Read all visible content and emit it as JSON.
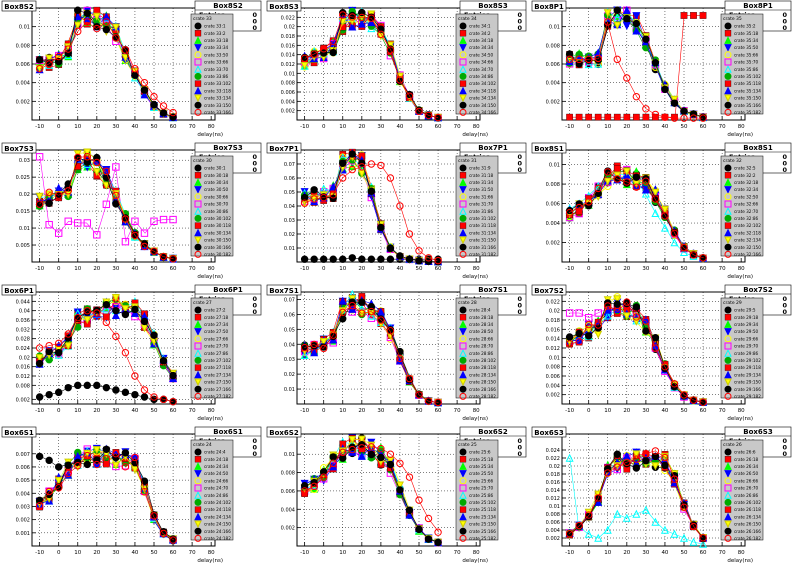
{
  "x_axis_label": "delay(ns)",
  "x_ticks": [
    -10,
    0,
    10,
    20,
    30,
    40,
    50,
    60,
    70,
    80
  ],
  "stats": {
    "label": "Entries",
    "values": [
      0,
      0,
      0
    ]
  },
  "marker_colors": [
    "#000000",
    "#ff0000",
    "#00ff00",
    "#0000ff",
    "#ffff00",
    "#ff00ff",
    "#00ffff",
    "#00aa00",
    "#ff0000",
    "#0000ff",
    "#ffff00",
    "#000000",
    "#ff0000"
  ],
  "marker_shapes": [
    "circle",
    "square",
    "triangle-up",
    "triangle-down",
    "circle-open",
    "square-open",
    "triangle-open",
    "circle",
    "square",
    "triangle-up",
    "triangle-down",
    "circle",
    "circle-open"
  ],
  "chart_data": [
    {
      "name": "Box8S2",
      "type": "line",
      "crate": "crate 33",
      "ylim": [
        0,
        0.012
      ],
      "yticks": [
        0.002,
        0.004,
        0.006,
        0.008,
        0.01
      ],
      "series_labels": [
        "crate 33:1",
        "crate 33:2",
        "crate 33:18",
        "crate 33:34",
        "crate 33:50",
        "crate 33:66",
        "crate 33:70",
        "crate 33:86",
        "crate 33:102",
        "crate 33:118",
        "crate 33:134",
        "crate 33:150",
        "crate 33:166"
      ],
      "x": [
        -10,
        -5,
        0,
        5,
        10,
        15,
        20,
        25,
        30,
        35,
        40,
        45,
        50,
        55,
        60
      ],
      "profile": [
        0.006,
        0.0062,
        0.0065,
        0.0075,
        0.0108,
        0.0112,
        0.0108,
        0.0105,
        0.0092,
        0.007,
        0.005,
        0.003,
        0.0015,
        0.0007,
        0.0003
      ],
      "outlier": {
        "series": 12,
        "values": [
          0.0055,
          0.006,
          0.0068,
          0.0076,
          0.0095,
          0.0105,
          0.0098,
          0.0105,
          0.0088,
          0.0075,
          0.0055,
          0.004,
          0.0025,
          0.0015,
          0.0008
        ]
      }
    },
    {
      "name": "Box8S3",
      "type": "line",
      "crate": "crate 34",
      "ylim": [
        0,
        0.024
      ],
      "yticks": [
        0.002,
        0.004,
        0.006,
        0.008,
        0.01,
        0.012,
        0.014,
        0.016,
        0.018,
        0.02,
        0.022
      ],
      "series_labels": [
        "crate 34:1",
        "crate 34:2",
        "crate 34:18",
        "crate 34:34",
        "crate 34:50",
        "crate 34:66",
        "crate 34:70",
        "crate 34:86",
        "crate 34:102",
        "crate 34:118",
        "crate 34:134",
        "crate 34:150",
        "crate 34:166"
      ],
      "x": [
        -10,
        -5,
        0,
        5,
        10,
        15,
        20,
        25,
        30,
        35,
        40,
        45,
        50,
        55,
        60
      ],
      "profile": [
        0.0125,
        0.0135,
        0.0145,
        0.016,
        0.021,
        0.022,
        0.0218,
        0.0215,
        0.019,
        0.015,
        0.009,
        0.005,
        0.002,
        0.001,
        0.0005
      ]
    },
    {
      "name": "Box8P1",
      "type": "line",
      "crate": "crate 35",
      "ylim": [
        0,
        0.012
      ],
      "yticks": [
        0.002,
        0.004,
        0.006,
        0.008,
        0.01
      ],
      "series_labels": [
        "crate 35:2",
        "crate 35:18",
        "crate 35:34",
        "crate 35:50",
        "crate 35:66",
        "crate 35:70",
        "crate 35:86",
        "crate 35:102",
        "crate 35:118",
        "crate 35:134",
        "crate 35:150",
        "crate 35:166",
        "crate 35:182"
      ],
      "x": [
        -10,
        -5,
        0,
        5,
        10,
        15,
        20,
        25,
        30,
        35,
        40,
        45,
        50,
        55,
        60
      ],
      "profile": [
        0.0065,
        0.0065,
        0.0065,
        0.0066,
        0.0108,
        0.0112,
        0.011,
        0.0105,
        0.0085,
        0.006,
        0.0035,
        0.002,
        0.001,
        0.0006,
        0.0003
      ],
      "outlier": {
        "series": 8,
        "values": [
          0.0003,
          0.0003,
          0.0003,
          0.0003,
          0.0003,
          0.0003,
          0.0003,
          0.0003,
          0.0003,
          0.0003,
          0.0003,
          0.0003,
          0.0112,
          0.0112,
          0.0112
        ]
      },
      "outlier2": {
        "series": 12,
        "values": [
          0.0065,
          0.0065,
          0.0065,
          0.0066,
          0.0105,
          0.0065,
          0.0045,
          0.0025,
          0.0012,
          0.0006,
          0.0003,
          0.0002,
          0.0002,
          0.0002,
          0.0002
        ]
      }
    },
    {
      "name": "Box7S3",
      "type": "line",
      "crate": "crate 30",
      "ylim": [
        0,
        0.033
      ],
      "yticks": [
        0.005,
        0.01,
        0.015,
        0.02,
        0.025,
        0.03
      ],
      "series_labels": [
        "crate 30:1",
        "crate 30:18",
        "crate 30:34",
        "crate 30:50",
        "crate 30:66",
        "crate 30:70",
        "crate 30:86",
        "crate 30:102",
        "crate 30:118",
        "crate 30:134",
        "crate 30:150",
        "crate 30:166",
        "crate 30:182"
      ],
      "x": [
        -10,
        -5,
        0,
        5,
        10,
        15,
        20,
        25,
        30,
        35,
        40,
        45,
        50,
        55,
        60
      ],
      "profile": [
        0.018,
        0.019,
        0.02,
        0.021,
        0.029,
        0.0305,
        0.028,
        0.025,
        0.019,
        0.013,
        0.008,
        0.005,
        0.003,
        0.0015,
        0.001
      ],
      "outlier": {
        "series": 5,
        "values": [
          0.031,
          0.011,
          0.0085,
          0.012,
          0.0115,
          0.0115,
          0.008,
          0.017,
          0.028,
          0.006,
          0.012,
          0.0085,
          0.012,
          0.0125,
          0.0125
        ]
      }
    },
    {
      "name": "Box7P1",
      "type": "line",
      "crate": "crate 31",
      "ylim": [
        0,
        0.08
      ],
      "yticks": [
        0.01,
        0.02,
        0.03,
        0.04,
        0.05,
        0.06,
        0.07
      ],
      "series_labels": [
        "crate 31:9",
        "crate 31:18",
        "crate 31:34",
        "crate 31:50",
        "crate 31:66",
        "crate 31:70",
        "crate 31:86",
        "crate 31:102",
        "crate 31:118",
        "crate 31:134",
        "crate 31:150",
        "crate 31:166",
        "crate 31:182"
      ],
      "x": [
        -10,
        -5,
        0,
        5,
        10,
        15,
        20,
        25,
        30,
        35,
        40,
        45,
        50,
        55,
        60
      ],
      "profile": [
        0.046,
        0.047,
        0.048,
        0.05,
        0.072,
        0.073,
        0.07,
        0.05,
        0.025,
        0.01,
        0.004,
        0.002,
        0.001,
        0.0005,
        0.0003
      ],
      "outlier": {
        "series": 0,
        "values": [
          0.002,
          0.002,
          0.002,
          0.002,
          0.002,
          0.003,
          0.002,
          0.002,
          0.002,
          0.002,
          0.002,
          0.002,
          0.002,
          0.002,
          0.002
        ]
      },
      "outlier2": {
        "series": 12,
        "values": [
          0.042,
          0.045,
          0.046,
          0.048,
          0.06,
          0.066,
          0.068,
          0.07,
          0.069,
          0.06,
          0.04,
          0.02,
          0.008,
          0.003,
          0.001
        ]
      }
    },
    {
      "name": "Box8S1",
      "type": "line",
      "crate": "crate 32",
      "ylim": [
        0,
        0.0115
      ],
      "yticks": [
        0.002,
        0.004,
        0.006,
        0.008,
        0.01
      ],
      "series_labels": [
        "crate 32:5",
        "crate 32:2",
        "crate 32:18",
        "crate 32:34",
        "crate 32:50",
        "crate 32:66",
        "crate 32:70",
        "crate 32:86",
        "crate 32:102",
        "crate 32:118",
        "crate 32:134",
        "crate 32:150",
        "crate 32:166"
      ],
      "x": [
        -10,
        -5,
        0,
        5,
        10,
        15,
        20,
        25,
        30,
        35,
        40,
        45,
        50,
        55,
        60
      ],
      "profile": [
        0.005,
        0.0055,
        0.006,
        0.0072,
        0.0085,
        0.009,
        0.0088,
        0.0085,
        0.008,
        0.0068,
        0.005,
        0.003,
        0.0015,
        0.0008,
        0.0004
      ],
      "outlier": {
        "series": 6,
        "values": [
          0.0055,
          0.006,
          0.0068,
          0.0078,
          0.0088,
          0.009,
          0.009,
          0.0085,
          0.007,
          0.005,
          0.0035,
          0.002,
          0.001,
          0.0006,
          0.0004
        ]
      }
    },
    {
      "name": "Box6P1",
      "type": "line",
      "crate": "crate 27",
      "ylim": [
        0,
        0.048
      ],
      "yticks": [
        0.002,
        0.008,
        0.012,
        0.016,
        0.02,
        0.024,
        0.028,
        0.032,
        0.036,
        0.04,
        0.044
      ],
      "series_labels": [
        "crate 27:2",
        "crate 27:18",
        "crate 27:34",
        "crate 27:50",
        "crate 27:66",
        "crate 27:70",
        "crate 27:86",
        "crate 27:102",
        "crate 27:118",
        "crate 27:134",
        "crate 27:150",
        "crate 27:166",
        "crate 27:182"
      ],
      "x": [
        -10,
        -5,
        0,
        5,
        10,
        15,
        20,
        25,
        30,
        35,
        40,
        45,
        50,
        55,
        60
      ],
      "profile": [
        0.019,
        0.021,
        0.023,
        0.027,
        0.036,
        0.038,
        0.039,
        0.041,
        0.042,
        0.041,
        0.04,
        0.036,
        0.028,
        0.018,
        0.012
      ],
      "outlier": {
        "series": 0,
        "values": [
          0.003,
          0.004,
          0.005,
          0.007,
          0.008,
          0.008,
          0.008,
          0.007,
          0.006,
          0.005,
          0.004,
          0.003,
          0.002,
          0.002,
          0.001
        ]
      },
      "outlier2": {
        "series": 12,
        "values": [
          0.024,
          0.025,
          0.026,
          0.03,
          0.037,
          0.04,
          0.039,
          0.035,
          0.029,
          0.022,
          0.012,
          0.006,
          0.003,
          0.002,
          0.001
        ]
      }
    },
    {
      "name": "Box7S1",
      "type": "line",
      "crate": "crate 28",
      "ylim": [
        0,
        0.075
      ],
      "yticks": [
        0.01,
        0.02,
        0.03,
        0.04,
        0.05,
        0.06,
        0.07
      ],
      "series_labels": [
        "crate 28:4",
        "crate 28:18",
        "crate 28:34",
        "crate 28:50",
        "crate 28:66",
        "crate 28:70",
        "crate 28:86",
        "crate 28:102",
        "crate 28:118",
        "crate 28:134",
        "crate 28:150",
        "crate 28:166",
        "crate 28:182"
      ],
      "x": [
        -10,
        -5,
        0,
        5,
        10,
        15,
        20,
        25,
        30,
        35,
        40,
        45,
        50,
        55,
        60
      ],
      "profile": [
        0.036,
        0.038,
        0.04,
        0.045,
        0.063,
        0.068,
        0.066,
        0.063,
        0.057,
        0.048,
        0.032,
        0.016,
        0.006,
        0.002,
        0.001
      ]
    },
    {
      "name": "Box7S2",
      "type": "line",
      "crate": "crate 29",
      "ylim": [
        0,
        0.024
      ],
      "yticks": [
        0.002,
        0.004,
        0.006,
        0.008,
        0.01,
        0.012,
        0.014,
        0.016,
        0.018,
        0.02,
        0.022
      ],
      "series_labels": [
        "crate 29:5",
        "crate 29:18",
        "crate 29:34",
        "crate 29:50",
        "crate 29:66",
        "crate 29:70",
        "crate 29:86",
        "crate 29:102",
        "crate 29:118",
        "crate 29:134",
        "crate 29:150",
        "crate 29:166",
        "crate 29:182"
      ],
      "x": [
        -10,
        -5,
        0,
        5,
        10,
        15,
        20,
        25,
        30,
        35,
        40,
        45,
        50,
        55,
        60
      ],
      "profile": [
        0.014,
        0.0145,
        0.0155,
        0.0165,
        0.0205,
        0.021,
        0.0205,
        0.0195,
        0.017,
        0.013,
        0.008,
        0.004,
        0.0018,
        0.0008,
        0.0004
      ],
      "outlier": {
        "series": 5,
        "values": [
          0.0195,
          0.0195,
          0.0185,
          0.0195,
          0.0205,
          0.0205,
          0.0205,
          0.0195,
          0.0175,
          0.012,
          0.007,
          0.0035,
          0.0015,
          0.0008,
          0.0004
        ]
      }
    },
    {
      "name": "Box6S1",
      "type": "line",
      "crate": "crate 24",
      "ylim": [
        0,
        0.0085
      ],
      "yticks": [
        0.001,
        0.002,
        0.003,
        0.004,
        0.005,
        0.006,
        0.007
      ],
      "series_labels": [
        "crate 24:4",
        "crate 24:18",
        "crate 24:34",
        "crate 24:50",
        "crate 24:66",
        "crate 24:70",
        "crate 24:86",
        "crate 24:102",
        "crate 24:118",
        "crate 24:134",
        "crate 24:150",
        "crate 24:166",
        "crate 24:182"
      ],
      "x": [
        -10,
        -5,
        0,
        5,
        10,
        15,
        20,
        25,
        30,
        35,
        40,
        45,
        50,
        55,
        60
      ],
      "profile": [
        0.0032,
        0.0038,
        0.0048,
        0.0058,
        0.0065,
        0.0068,
        0.0068,
        0.0068,
        0.0067,
        0.0066,
        0.0062,
        0.0045,
        0.0022,
        0.001,
        0.0005
      ],
      "outlier": {
        "series": 0,
        "values": [
          0.0068,
          0.0065,
          0.006,
          0.0062,
          0.0063,
          0.0065,
          0.0066,
          0.0066,
          0.0067,
          0.0066,
          0.006,
          0.0045,
          0.002,
          0.0009,
          0.0004
        ]
      }
    },
    {
      "name": "Box6S2",
      "type": "line",
      "crate": "crate 25",
      "ylim": [
        0,
        0.0122
      ],
      "yticks": [
        0.002,
        0.004,
        0.006,
        0.008,
        0.01
      ],
      "series_labels": [
        "crate 25:6",
        "crate 25:18",
        "crate 25:34",
        "crate 25:50",
        "crate 25:66",
        "crate 25:70",
        "crate 25:86",
        "crate 25:102",
        "crate 25:118",
        "crate 25:134",
        "crate 25:150",
        "crate 25:166",
        "crate 25:182"
      ],
      "x": [
        -10,
        -5,
        0,
        5,
        10,
        15,
        20,
        25,
        30,
        35,
        40,
        45,
        50,
        55,
        60
      ],
      "profile": [
        0.0062,
        0.0068,
        0.0078,
        0.0092,
        0.0105,
        0.0108,
        0.0108,
        0.0106,
        0.0098,
        0.0085,
        0.0062,
        0.0036,
        0.0018,
        0.0008,
        0.0004
      ],
      "outlier": {
        "series": 12,
        "values": [
          0.006,
          0.0065,
          0.0075,
          0.009,
          0.0102,
          0.0105,
          0.0107,
          0.0108,
          0.0106,
          0.01,
          0.009,
          0.0075,
          0.005,
          0.003,
          0.0015
        ]
      }
    },
    {
      "name": "Box6S3",
      "type": "line",
      "crate": "crate 26",
      "ylim": [
        0,
        0.028
      ],
      "yticks": [
        0.002,
        0.004,
        0.006,
        0.008,
        0.01,
        0.012,
        0.014,
        0.016,
        0.018,
        0.02,
        0.022,
        0.024
      ],
      "series_labels": [
        "crate 26:6",
        "crate 26:18",
        "crate 26:34",
        "crate 26:50",
        "crate 26:66",
        "crate 26:70",
        "crate 26:86",
        "crate 26:102",
        "crate 26:118",
        "crate 26:134",
        "crate 26:150",
        "crate 26:166",
        "crate 26:182"
      ],
      "x": [
        -10,
        -5,
        0,
        5,
        10,
        15,
        20,
        25,
        30,
        35,
        40,
        45,
        50,
        55,
        60
      ],
      "profile": [
        0.003,
        0.005,
        0.008,
        0.012,
        0.019,
        0.021,
        0.021,
        0.0215,
        0.022,
        0.0218,
        0.021,
        0.017,
        0.01,
        0.005,
        0.002
      ],
      "outlier": {
        "series": 6,
        "values": [
          0.022,
          0.005,
          0.003,
          0.002,
          0.004,
          0.008,
          0.007,
          0.008,
          0.009,
          0.006,
          0.004,
          0.003,
          0.002,
          0.001,
          0.0005
        ]
      }
    }
  ]
}
